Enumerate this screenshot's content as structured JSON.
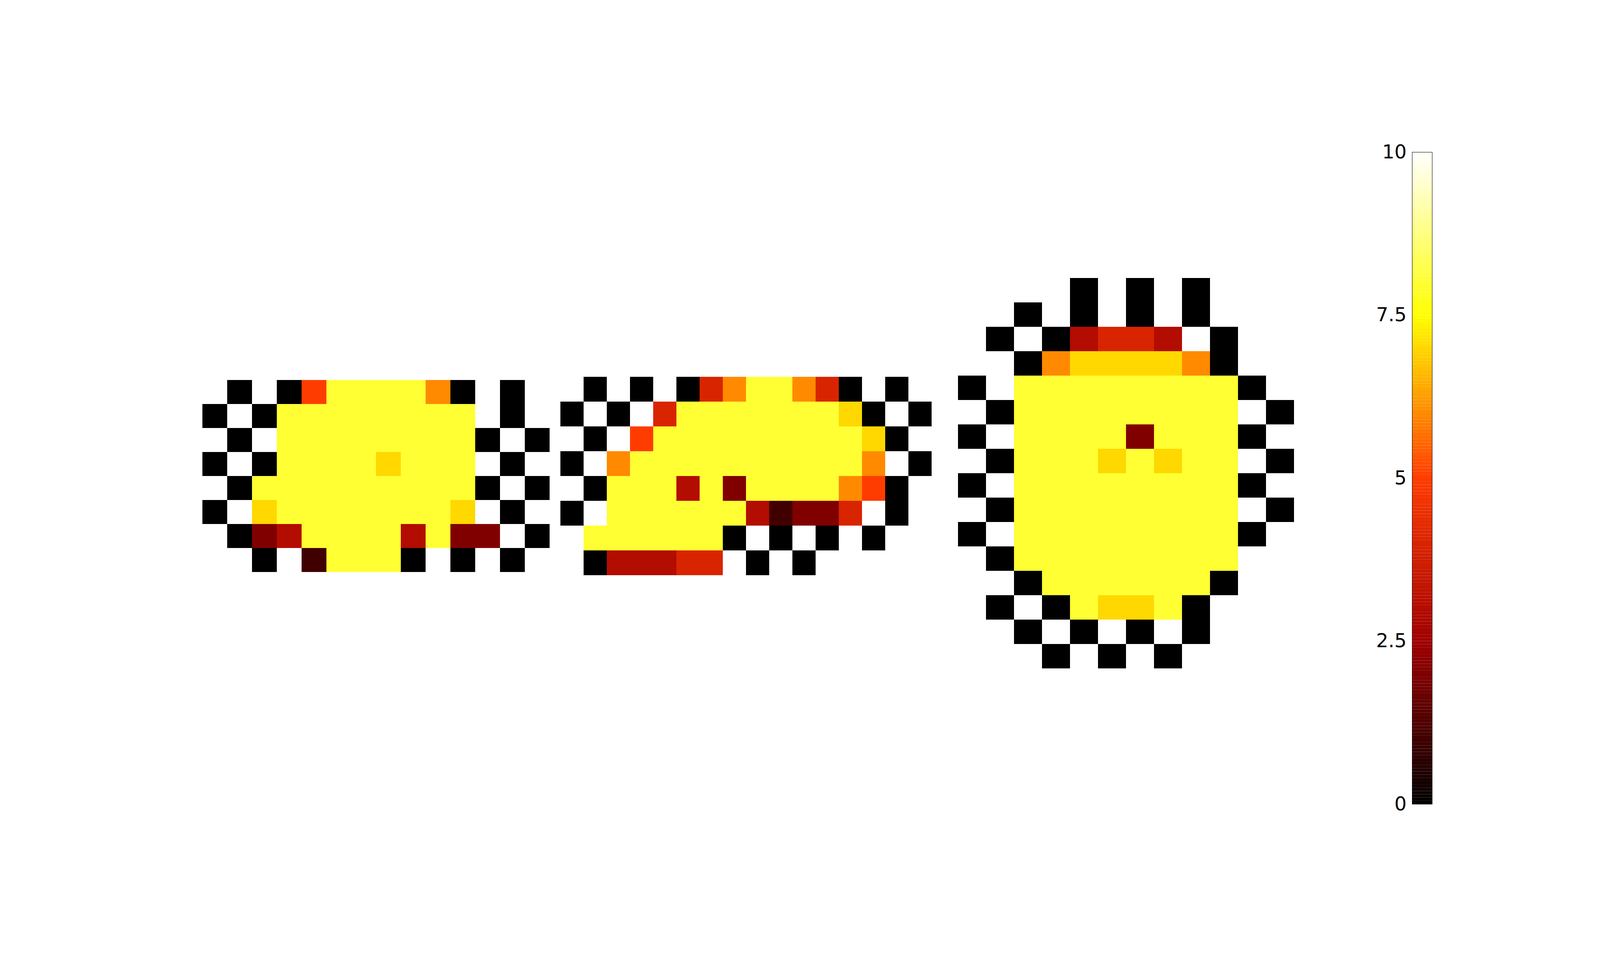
{
  "chart_data": {
    "type": "heatmap",
    "views": [
      {
        "cells": [
          [
            null,
            0,
            10,
            0,
            5,
            8,
            8,
            8,
            8,
            6,
            0,
            10,
            0,
            null
          ],
          [
            0,
            10,
            0,
            8,
            8,
            8,
            8,
            8,
            8,
            8,
            8,
            10,
            0,
            10
          ],
          [
            10,
            0,
            10,
            8,
            8,
            8,
            8,
            8,
            8,
            8,
            8,
            0,
            10,
            0
          ],
          [
            0,
            10,
            0,
            8,
            8,
            8,
            8,
            7,
            8,
            8,
            8,
            10,
            0,
            10
          ],
          [
            10,
            0,
            8,
            8,
            8,
            8,
            8,
            8,
            8,
            8,
            8,
            0,
            10,
            0
          ],
          [
            0,
            10,
            7,
            8,
            8,
            8,
            8,
            8,
            8,
            8,
            7,
            10,
            0,
            10
          ],
          [
            10,
            0,
            2,
            3,
            8,
            8,
            8,
            8,
            3,
            8,
            2,
            2,
            10,
            0
          ],
          [
            null,
            10,
            0,
            10,
            1,
            8,
            8,
            8,
            0,
            10,
            0,
            10,
            0,
            null
          ]
        ]
      },
      {
        "cells": [
          [
            null,
            0,
            10,
            0,
            10,
            0,
            4,
            6,
            8,
            8,
            6,
            4,
            0,
            10,
            0,
            null
          ],
          [
            0,
            10,
            0,
            10,
            4,
            8,
            8,
            8,
            8,
            8,
            8,
            8,
            7,
            0,
            10,
            0
          ],
          [
            10,
            0,
            10,
            5,
            8,
            8,
            8,
            8,
            8,
            8,
            8,
            8,
            8,
            7,
            0,
            10
          ],
          [
            0,
            10,
            6,
            8,
            8,
            8,
            8,
            8,
            8,
            8,
            8,
            8,
            8,
            6,
            10,
            0
          ],
          [
            10,
            0,
            8,
            8,
            8,
            3,
            8,
            2,
            8,
            8,
            8,
            8,
            6,
            5,
            0,
            10
          ],
          [
            0,
            10,
            8,
            8,
            8,
            8,
            8,
            8,
            3,
            1,
            2,
            2,
            4,
            10,
            0,
            null
          ],
          [
            10,
            8,
            8,
            8,
            8,
            8,
            8,
            0,
            10,
            0,
            10,
            0,
            10,
            0,
            null,
            null
          ],
          [
            null,
            0,
            3,
            3,
            3,
            4,
            4,
            10,
            0,
            10,
            0,
            10,
            null,
            null,
            null,
            null
          ]
        ]
      },
      {
        "cells": [
          [
            null,
            null,
            null,
            10,
            0,
            10,
            0,
            10,
            0,
            null,
            null,
            null
          ],
          [
            null,
            null,
            0,
            10,
            0,
            10,
            0,
            10,
            0,
            10,
            null,
            null
          ],
          [
            null,
            0,
            10,
            0,
            3,
            4,
            4,
            3,
            10,
            0,
            10,
            null
          ],
          [
            null,
            10,
            0,
            6,
            7,
            7,
            7,
            7,
            6,
            0,
            10,
            null
          ],
          [
            0,
            10,
            8,
            8,
            8,
            8,
            8,
            8,
            8,
            8,
            0,
            10
          ],
          [
            10,
            0,
            8,
            8,
            8,
            8,
            8,
            8,
            8,
            8,
            10,
            0
          ],
          [
            0,
            10,
            8,
            8,
            8,
            8,
            2,
            8,
            8,
            8,
            0,
            10
          ],
          [
            10,
            0,
            8,
            8,
            8,
            7,
            8,
            7,
            8,
            8,
            10,
            0
          ],
          [
            0,
            10,
            8,
            8,
            8,
            8,
            8,
            8,
            8,
            8,
            0,
            10
          ],
          [
            10,
            0,
            8,
            8,
            8,
            8,
            8,
            8,
            8,
            8,
            10,
            0
          ],
          [
            0,
            10,
            8,
            8,
            8,
            8,
            8,
            8,
            8,
            8,
            0,
            10
          ],
          [
            10,
            0,
            8,
            8,
            8,
            8,
            8,
            8,
            8,
            8,
            10,
            null
          ],
          [
            null,
            10,
            0,
            8,
            8,
            8,
            8,
            8,
            8,
            0,
            10,
            null
          ],
          [
            null,
            0,
            10,
            0,
            8,
            7,
            7,
            8,
            0,
            10,
            null,
            null
          ],
          [
            null,
            null,
            0,
            10,
            0,
            10,
            0,
            10,
            0,
            null,
            null,
            null
          ],
          [
            null,
            null,
            null,
            0,
            10,
            0,
            10,
            0,
            null,
            null,
            null,
            null
          ]
        ]
      }
    ],
    "colorbar": {
      "range": [
        0,
        10
      ],
      "ticks": [
        0,
        2.5,
        5,
        7.5,
        10
      ]
    }
  }
}
